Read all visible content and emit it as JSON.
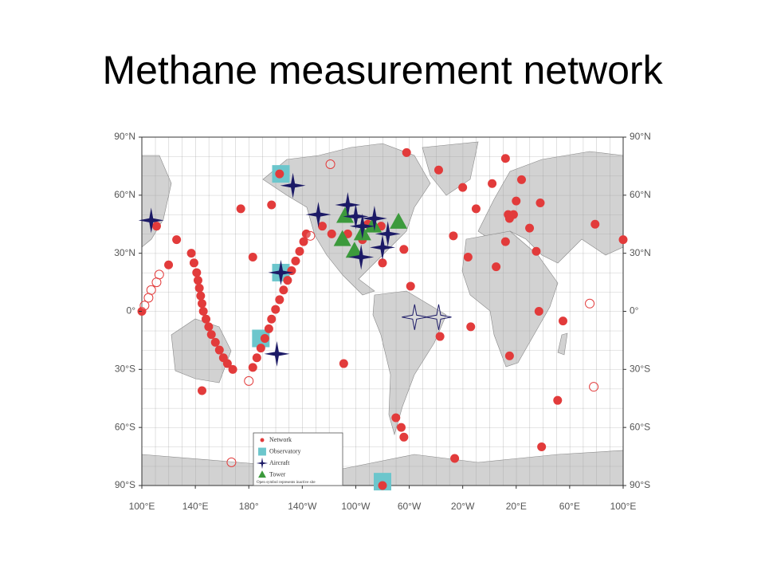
{
  "title": "Methane measurement network",
  "map": {
    "xlim": [
      100,
      460
    ],
    "ylim": [
      -90,
      90
    ],
    "xticks": [
      {
        "value": 100,
        "label": "100°E"
      },
      {
        "value": 140,
        "label": "140°E"
      },
      {
        "value": 180,
        "label": "180°"
      },
      {
        "value": 220,
        "label": "140°W"
      },
      {
        "value": 260,
        "label": "100°W"
      },
      {
        "value": 300,
        "label": "60°W"
      },
      {
        "value": 340,
        "label": "20°W"
      },
      {
        "value": 380,
        "label": "20°E"
      },
      {
        "value": 420,
        "label": "60°E"
      },
      {
        "value": 460,
        "label": "100°E"
      }
    ],
    "yticks": [
      {
        "value": 90,
        "label": "90°N"
      },
      {
        "value": 60,
        "label": "60°N"
      },
      {
        "value": 30,
        "label": "30°N"
      },
      {
        "value": 0,
        "label": "0°"
      },
      {
        "value": -30,
        "label": "30°S"
      },
      {
        "value": -60,
        "label": "60°S"
      },
      {
        "value": -90,
        "label": "90°S"
      }
    ],
    "legend_note": "Open symbol represents inactive site",
    "sites": [
      {
        "name": "Observatory",
        "marker": "square",
        "color": "#6cc6cc",
        "active": [
          [
            204,
            71
          ],
          [
            204,
            20
          ],
          [
            189,
            -14
          ],
          [
            280,
            -88
          ]
        ],
        "inactive": []
      },
      {
        "name": "Network",
        "marker": "circle",
        "color": "#e23b3b",
        "active": [
          [
            298,
            82
          ],
          [
            322,
            73
          ],
          [
            372,
            79
          ],
          [
            340,
            64
          ],
          [
            384,
            68
          ],
          [
            362,
            66
          ],
          [
            350,
            53
          ],
          [
            374,
            50
          ],
          [
            375,
            48
          ],
          [
            378,
            50
          ],
          [
            380,
            57
          ],
          [
            398,
            56
          ],
          [
            439,
            45
          ],
          [
            460,
            37
          ],
          [
            100,
            0
          ],
          [
            372,
            36
          ],
          [
            390,
            43
          ],
          [
            333,
            39
          ],
          [
            344,
            28
          ],
          [
            365,
            23
          ],
          [
            395,
            31
          ],
          [
            301,
            13
          ],
          [
            323,
            -13
          ],
          [
            346,
            -8
          ],
          [
            397,
            0
          ],
          [
            415,
            -5
          ],
          [
            375,
            -23
          ],
          [
            411,
            -46
          ],
          [
            399,
            -70
          ],
          [
            334,
            -76
          ],
          [
            280,
            -90
          ],
          [
            290,
            -55
          ],
          [
            294,
            -60
          ],
          [
            296,
            -65
          ],
          [
            251,
            -27
          ],
          [
            235,
            44
          ],
          [
            242,
            40
          ],
          [
            254,
            40
          ],
          [
            265,
            37
          ],
          [
            269,
            45
          ],
          [
            279,
            44
          ],
          [
            292,
            46
          ],
          [
            296,
            32
          ],
          [
            280,
            25
          ],
          [
            203,
            71
          ],
          [
            197,
            55
          ],
          [
            174,
            53
          ],
          [
            183,
            28
          ],
          [
            111,
            44
          ],
          [
            126,
            37
          ],
          [
            120,
            24
          ],
          [
            145,
            -41
          ],
          [
            137,
            30
          ],
          [
            139,
            25
          ],
          [
            141,
            20
          ],
          [
            142,
            16
          ],
          [
            143,
            12
          ],
          [
            144,
            8
          ],
          [
            145,
            4
          ],
          [
            146,
            0
          ],
          [
            148,
            -4
          ],
          [
            150,
            -8
          ],
          [
            152,
            -12
          ],
          [
            155,
            -16
          ],
          [
            158,
            -20
          ],
          [
            161,
            -24
          ],
          [
            164,
            -27
          ],
          [
            168,
            -30
          ],
          [
            183,
            -29
          ],
          [
            186,
            -24
          ],
          [
            189,
            -19
          ],
          [
            192,
            -14
          ],
          [
            195,
            -9
          ],
          [
            197,
            -4
          ],
          [
            200,
            1
          ],
          [
            203,
            6
          ],
          [
            206,
            11
          ],
          [
            209,
            16
          ],
          [
            212,
            21
          ],
          [
            215,
            26
          ],
          [
            218,
            31
          ],
          [
            221,
            36
          ],
          [
            223,
            40
          ]
        ],
        "inactive": [
          [
            113,
            19
          ],
          [
            111,
            15
          ],
          [
            107,
            11
          ],
          [
            105,
            7
          ],
          [
            102,
            3
          ],
          [
            226,
            39
          ],
          [
            435,
            4
          ],
          [
            438,
            -39
          ],
          [
            167,
            -78
          ],
          [
            180,
            -36
          ],
          [
            241,
            76
          ]
        ]
      },
      {
        "name": "Tower",
        "marker": "triangle",
        "color": "#3c9a3c",
        "active": [
          [
            252,
            49
          ],
          [
            265,
            40
          ],
          [
            273,
            44
          ],
          [
            292,
            46
          ],
          [
            259,
            31
          ],
          [
            250,
            37
          ]
        ],
        "inactive": []
      },
      {
        "name": "Aircraft",
        "marker": "star",
        "color": "#1c1a66",
        "active": [
          [
            107,
            47
          ],
          [
            213,
            65
          ],
          [
            204,
            20
          ],
          [
            201,
            -22
          ],
          [
            232,
            50
          ],
          [
            254,
            55
          ],
          [
            260,
            49
          ],
          [
            265,
            44
          ],
          [
            274,
            48
          ],
          [
            284,
            40
          ],
          [
            264,
            28
          ],
          [
            280,
            33
          ]
        ],
        "inactive": [
          [
            304,
            -3
          ],
          [
            322,
            -3
          ]
        ]
      }
    ],
    "legend_order": [
      1,
      0,
      3,
      2
    ]
  }
}
